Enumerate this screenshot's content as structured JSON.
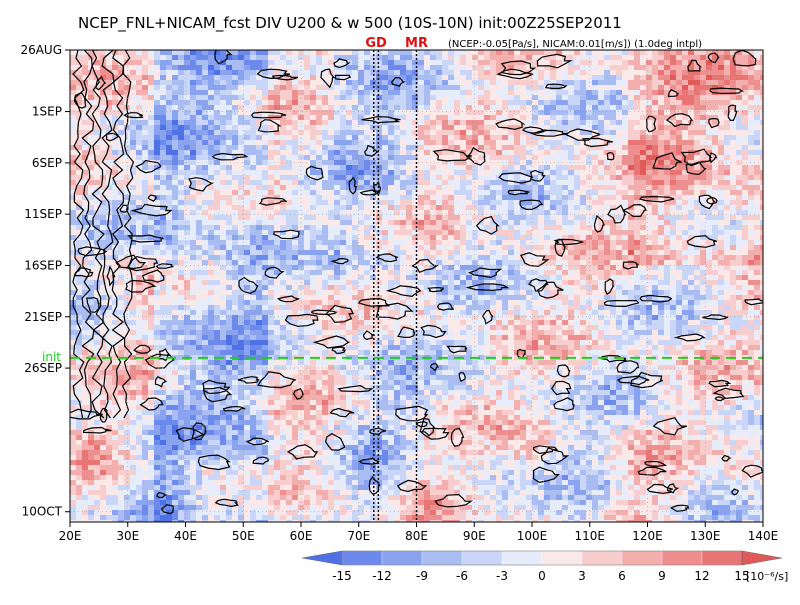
{
  "chart_data": {
    "type": "heatmap",
    "title": "NCEP_FNL+NICAM_fcst DIV U200 & w 500 (10S-10N) init:00Z25SEP2011",
    "markers": [
      {
        "label": "GD",
        "x": 73.0,
        "lines": [
          72.6,
          73.4
        ],
        "color": "#dd1111"
      },
      {
        "label": "MR",
        "x": 80.0,
        "lines": [
          80.0
        ],
        "color": "#dd1111"
      }
    ],
    "subtitle": "(NCEP:-0.05[Pa/s], NICAM:0.01[m/s]) (1.0deg intpl)",
    "x_axis": {
      "range": [
        20,
        140
      ],
      "ticks": [
        20,
        30,
        40,
        50,
        60,
        70,
        80,
        90,
        100,
        110,
        120,
        130,
        140
      ],
      "tick_labels": [
        "20E",
        "30E",
        "40E",
        "50E",
        "60E",
        "70E",
        "80E",
        "90E",
        "100E",
        "110E",
        "120E",
        "130E",
        "140E"
      ]
    },
    "y_axis": {
      "range": [
        "2011-08-26",
        "2011-10-11"
      ],
      "direction": "downward",
      "ticks": [
        "2011-08-26",
        "2011-09-01",
        "2011-09-06",
        "2011-09-11",
        "2011-09-16",
        "2011-09-21",
        "2011-09-26",
        "2011-10-10"
      ],
      "tick_labels": [
        "26AUG",
        "1SEP",
        "6SEP",
        "11SEP",
        "16SEP",
        "21SEP",
        "26SEP",
        "10OCT"
      ]
    },
    "init_line": {
      "label": "init",
      "date": "2011-09-25",
      "color": "#22cc22"
    },
    "colorbar": {
      "levels": [
        -15,
        -12,
        -9,
        -6,
        -3,
        0,
        3,
        6,
        9,
        12,
        15
      ],
      "tick_labels": [
        "-15",
        "-12",
        "-9",
        "-6",
        "-3",
        "0",
        "3",
        "6",
        "9",
        "12",
        "15"
      ],
      "unit": "[10⁻⁶/s]",
      "colors": [
        "#4e72e6",
        "#6b8aeb",
        "#8aa3ee",
        "#a9bdf3",
        "#c9d6f7",
        "#e7ecfb",
        "#fbe8e8",
        "#f8cdcd",
        "#f3aeae",
        "#ee8f8f",
        "#e87474",
        "#e05a5a"
      ]
    },
    "grid": true
  }
}
